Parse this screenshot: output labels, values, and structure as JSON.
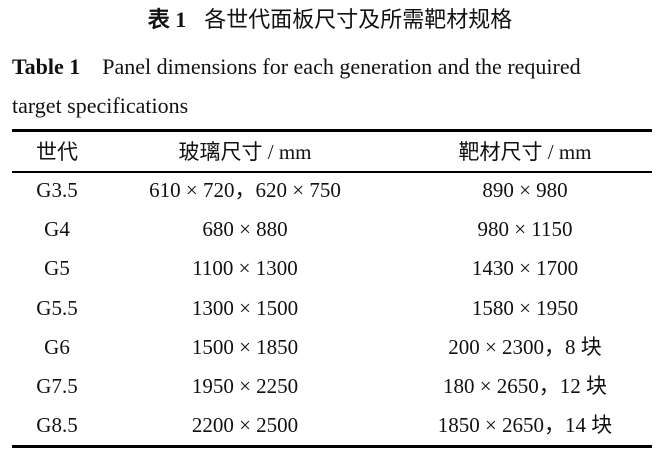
{
  "title": {
    "label": "表 1",
    "text": "各世代面板尺寸及所需靶材规格"
  },
  "caption": {
    "label": "Table 1",
    "line1": "Panel dimensions for each generation and the required",
    "line2": "target specifications"
  },
  "table": {
    "headers": [
      "世代",
      "玻璃尺寸  / mm",
      "靶材尺寸  / mm"
    ],
    "rows": [
      [
        "G3.5",
        "610 × 720，620 × 750",
        "890 × 980"
      ],
      [
        "G4",
        "680 × 880",
        "980 × 1150"
      ],
      [
        "G5",
        "1100 × 1300",
        "1430 × 1700"
      ],
      [
        "G5.5",
        "1300 × 1500",
        "1580 × 1950"
      ],
      [
        "G6",
        "1500 × 1850",
        "200 × 2300，8 块"
      ],
      [
        "G7.5",
        "1950 × 2250",
        "180 × 2650，12 块"
      ],
      [
        "G8.5",
        "2200 × 2500",
        "1850 × 2650，14 块"
      ]
    ]
  }
}
